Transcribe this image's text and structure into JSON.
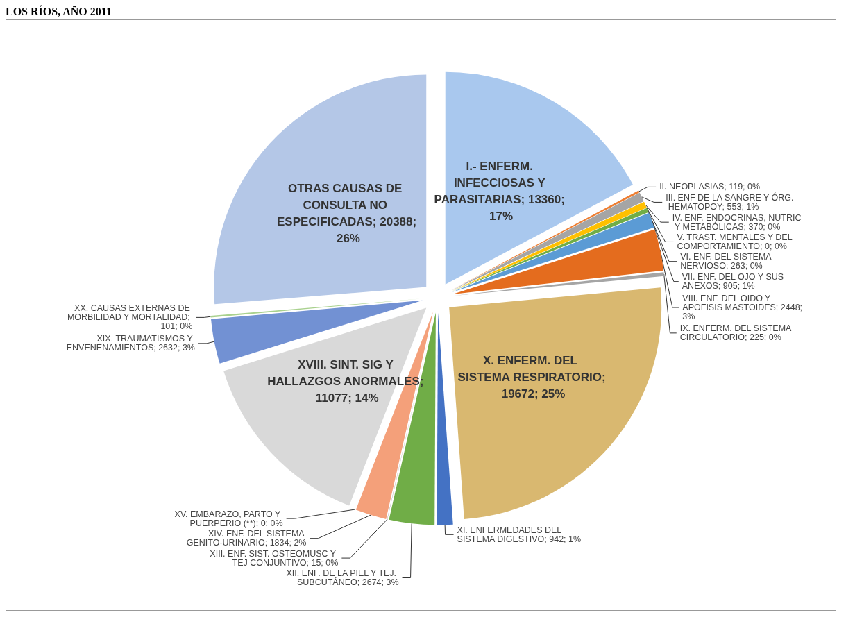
{
  "chart_data": {
    "type": "pie",
    "title": "LOS RÍOS, AÑO 2011",
    "categories": [
      "I.- ENFERM. INFECCIOSAS Y PARASITARIAS",
      "II. NEOPLASIAS",
      "III. ENF DE LA SANGRE Y ÓRG. HEMATOPOY",
      "IV. ENF. ENDOCRINAS, NUTRIC Y METABÓLICAS",
      "V. TRAST. MENTALES Y DEL COMPORTAMIENTO",
      "VI. ENF. DEL SISTEMA NERVIOSO",
      "VII. ENF. DEL OJO Y SUS ANEXOS",
      "VIII. ENF. DEL OIDO Y APOFISIS MASTOIDES",
      "IX. ENFERM. DEL SISTEMA CIRCULATORIO",
      "X. ENFERM. DEL SISTEMA RESPIRATORIO",
      "XI. ENFERMEDADES DEL SISTEMA DIGESTIVO",
      "XII. ENF. DE LA PIEL Y TEJ. SUBCUTÁNEO",
      "XIII. ENF. SIST. OSTEOMUSC Y TEJ CONJUNTIVO",
      "XIV. ENF. DEL SISTEMA GENITO-URINARIO",
      "XV. EMBARAZO, PARTO Y PUERPERIO (**)",
      "XVIII. SINT. SIG Y HALLAZGOS ANORMALES",
      "XIX. TRAUMATISMOS Y ENVENENAMIENTOS",
      "XX. CAUSAS EXTERNAS DE MORBILIDAD Y MORTALIDAD",
      "OTRAS CAUSAS DE CONSULTA NO ESPECIFICADAS"
    ],
    "values": [
      13360,
      119,
      553,
      370,
      0,
      263,
      905,
      2448,
      225,
      19672,
      942,
      2674,
      15,
      1834,
      0,
      11077,
      2632,
      101,
      20388
    ],
    "value_labels": [
      "; 13360; 17%",
      "; 119; 0%",
      "; 553; 1%",
      "; 370; 0%",
      "; 0; 0%",
      "; 263; 0%",
      "; 905; 1%",
      "; 2448; 3%",
      "; 225; 0%",
      "; 19672; 25%",
      "; 942; 1%",
      "; 2674; 3%",
      "; 15; 0%",
      "; 1834; 2%",
      "; 0; 0%",
      "; 11077; 14%",
      "; 2632; 3%",
      "; 101; 0%",
      "; 20388; 26%"
    ],
    "colors": [
      "#a9c8ee",
      "#ed7d31",
      "#a5a5a5",
      "#ffc000",
      "#5b9bd5",
      "#70ad47",
      "#5b9bd5",
      "#e46c1e",
      "#a5a5a5",
      "#d9b870",
      "#4472c4",
      "#70ad47",
      "#a5a5a5",
      "#f4a07a",
      "#ffc000",
      "#d9d9d9",
      "#7291d3",
      "#a9d18e",
      "#b4c7e7"
    ],
    "legend": false
  }
}
